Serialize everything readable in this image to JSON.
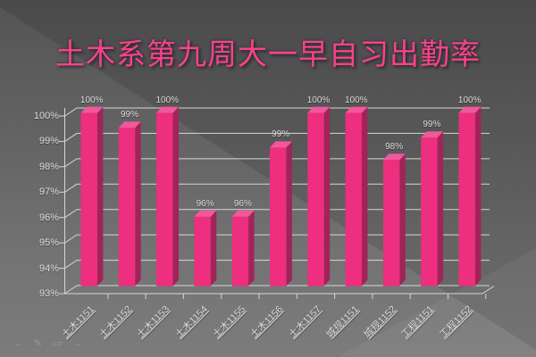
{
  "slide": {
    "title": "土木系第九周大一早自习出勤率",
    "title_color": "#F9418D"
  },
  "chart_data": {
    "type": "bar",
    "style": "3d-column",
    "title": "土木系第九周大一早自习出勤率",
    "categories": [
      "土木1151",
      "土木1152",
      "土木1153",
      "土木1154",
      "土木1155",
      "土木1156",
      "土木1157",
      "城规1151",
      "城规1152",
      "工程1151",
      "工程1152"
    ],
    "values": [
      100,
      99,
      100,
      96,
      96,
      99,
      100,
      100,
      98,
      99,
      100
    ],
    "data_labels": [
      "100%",
      "99%",
      "100%",
      "96%",
      "96%",
      "99%",
      "100%",
      "100%",
      "98%",
      "99%",
      "100%"
    ],
    "bar_top_percent": [
      100,
      99.4,
      100,
      95.8,
      95.8,
      98.6,
      100,
      100,
      98.1,
      99.0,
      100
    ],
    "y_ticks": [
      "93%",
      "94%",
      "95%",
      "96%",
      "97%",
      "98%",
      "99%",
      "100%"
    ],
    "ylim": [
      93,
      100
    ],
    "xlabel": "",
    "ylabel": "",
    "legend": "none",
    "grid": true,
    "colors": {
      "bar_front": "#EE2E7E",
      "bar_top": "#F2579C",
      "bar_side": "#A02459",
      "gridline": "#D6D6D6",
      "axis": "#D6D6D6",
      "labels": "#DEDEDE"
    }
  },
  "presenter_toolbar": {
    "icons": [
      {
        "name": "prev-slide-icon",
        "glyph": "←"
      },
      {
        "name": "pen-icon",
        "glyph": "✎"
      },
      {
        "name": "slide-menu-icon",
        "glyph": "▭"
      },
      {
        "name": "next-slide-icon",
        "glyph": "→"
      }
    ]
  }
}
